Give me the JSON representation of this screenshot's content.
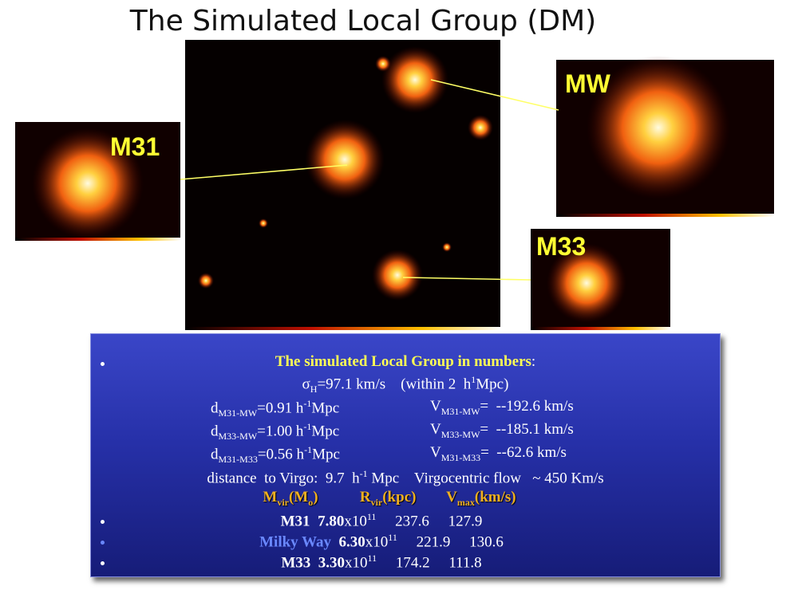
{
  "title": "The Simulated Local Group (DM)",
  "panels": {
    "m31": "M31",
    "mw": "MW",
    "m33": "M33"
  },
  "box": {
    "heading": [
      "The simulated Local Group in numbers",
      ":"
    ],
    "sigma": [
      "σ",
      "H",
      "=97.1 km/s    (within 2  h",
      "1",
      "Mpc)"
    ],
    "rows": [
      {
        "d": [
          "d",
          "M31-MW",
          "=0.91 h",
          "-1",
          "Mpc"
        ],
        "v": [
          "V",
          "M31-MW",
          "=  --192.6 km/s"
        ]
      },
      {
        "d": [
          "d",
          "M33-MW",
          "=1.00 h",
          "-1",
          "Mpc"
        ],
        "v": [
          "V",
          "M33-MW",
          "=  --185.1 km/s"
        ]
      },
      {
        "d": [
          "d",
          "M31-M33",
          "=0.56 h",
          "-1",
          "Mpc"
        ],
        "v": [
          "V",
          "M31-M33",
          "=  --62.6 km/s"
        ]
      }
    ],
    "virgo": [
      "distance  to Virgo:  9.7  h",
      "-1",
      " Mpc    Virgocentric flow   ~ 450 Km/s"
    ],
    "headers": [
      [
        "M",
        "vir",
        "(M",
        "o",
        ")"
      ],
      [
        "R",
        "vir",
        "(kpc)"
      ],
      [
        "V",
        "max",
        "(km/s)"
      ]
    ],
    "galaxies": [
      {
        "name": "M31",
        "mass": [
          "7.80",
          "x10",
          "11"
        ],
        "r": "237.6",
        "v": "127.9"
      },
      {
        "name": "Milky Way",
        "mass": [
          "6.30",
          "x10",
          "11"
        ],
        "r": "221.9",
        "v": "130.6"
      },
      {
        "name": "M33",
        "mass": [
          "3.30",
          "x10",
          "11"
        ],
        "r": "174.2",
        "v": "111.8"
      }
    ]
  }
}
